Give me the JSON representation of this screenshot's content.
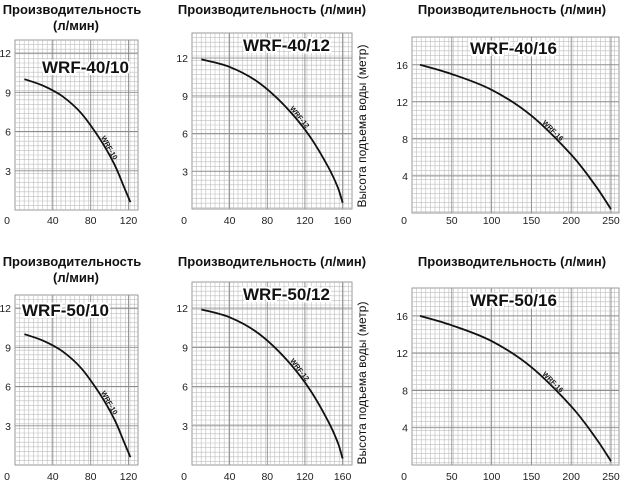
{
  "chart_data": [
    {
      "type": "line",
      "title": "Производительность (л/мин)",
      "model": "WRF-40/10",
      "curve_label": "WRF-10",
      "xlabel": "",
      "ylabel": "",
      "x_ticks": [
        0,
        40,
        80,
        120
      ],
      "y_ticks": [
        3,
        6,
        9,
        12
      ],
      "xlim": [
        0,
        130
      ],
      "ylim": [
        0,
        13
      ],
      "grid": true,
      "series": [
        {
          "x": [
            10,
            30,
            50,
            70,
            90,
            105,
            115,
            122
          ],
          "y": [
            10.0,
            9.5,
            8.7,
            7.4,
            5.4,
            3.5,
            1.8,
            0.6
          ]
        }
      ]
    },
    {
      "type": "line",
      "title": "Производительность (л/мин)",
      "model": "WRF-40/12",
      "curve_label": "WRF-12",
      "xlabel": "",
      "ylabel": "Высота подъема воды (метр)",
      "x_ticks": [
        0,
        40,
        80,
        120,
        160
      ],
      "y_ticks": [
        3,
        6,
        9,
        12
      ],
      "xlim": [
        0,
        170
      ],
      "ylim": [
        0,
        14
      ],
      "grid": true,
      "series": [
        {
          "x": [
            10,
            40,
            70,
            100,
            125,
            145,
            155,
            160
          ],
          "y": [
            11.9,
            11.3,
            10.1,
            8.1,
            5.8,
            3.3,
            1.7,
            0.5
          ]
        }
      ]
    },
    {
      "type": "line",
      "title": "Производительность (л/мин)",
      "model": "WRF-40/16",
      "curve_label": "WRF-16",
      "xlabel": "",
      "ylabel": "Высота подъема воды (метр)",
      "x_ticks": [
        0,
        50,
        100,
        150,
        200,
        250
      ],
      "y_ticks": [
        4,
        8,
        12,
        16
      ],
      "xlim": [
        0,
        260
      ],
      "ylim": [
        0,
        19
      ],
      "grid": true,
      "series": [
        {
          "x": [
            10,
            50,
            100,
            150,
            200,
            230,
            250
          ],
          "y": [
            16,
            15,
            13.3,
            10.5,
            6.3,
            3.0,
            0.4
          ]
        }
      ]
    },
    {
      "type": "line",
      "title": "Производительность (л/мин)",
      "model": "WRF-50/10",
      "curve_label": "WRF-10",
      "xlabel": "",
      "ylabel": "",
      "x_ticks": [
        0,
        40,
        80,
        120
      ],
      "y_ticks": [
        3,
        6,
        9,
        12
      ],
      "xlim": [
        0,
        130
      ],
      "ylim": [
        0,
        13
      ],
      "grid": true,
      "series": [
        {
          "x": [
            10,
            30,
            50,
            70,
            90,
            105,
            115,
            122
          ],
          "y": [
            10.0,
            9.5,
            8.7,
            7.4,
            5.4,
            3.5,
            1.8,
            0.6
          ]
        }
      ]
    },
    {
      "type": "line",
      "title": "Производительность (л/мин)",
      "model": "WRF-50/12",
      "curve_label": "WRF-12",
      "xlabel": "",
      "ylabel": "Высота подъема воды (метр)",
      "x_ticks": [
        0,
        40,
        80,
        120,
        160
      ],
      "y_ticks": [
        3,
        6,
        9,
        12
      ],
      "xlim": [
        0,
        170
      ],
      "ylim": [
        0,
        14
      ],
      "grid": true,
      "series": [
        {
          "x": [
            10,
            40,
            70,
            100,
            125,
            145,
            155,
            160
          ],
          "y": [
            11.9,
            11.3,
            10.1,
            8.1,
            5.8,
            3.3,
            1.7,
            0.5
          ]
        }
      ]
    },
    {
      "type": "line",
      "title": "Производительность (л/мин)",
      "model": "WRF-50/16",
      "curve_label": "WRF-16",
      "xlabel": "",
      "ylabel": "Высота подъема воды (метр)",
      "x_ticks": [
        0,
        50,
        100,
        150,
        200,
        250
      ],
      "y_ticks": [
        4,
        8,
        12,
        16
      ],
      "xlim": [
        0,
        260
      ],
      "ylim": [
        0,
        19
      ],
      "grid": true,
      "series": [
        {
          "x": [
            10,
            50,
            100,
            150,
            200,
            230,
            250
          ],
          "y": [
            16,
            15,
            13.3,
            10.5,
            6.3,
            3.0,
            0.4
          ]
        }
      ]
    }
  ]
}
